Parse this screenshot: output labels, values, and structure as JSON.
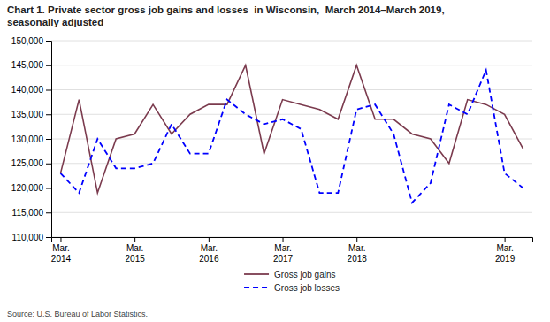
{
  "chart_data": {
    "type": "line",
    "title": "Chart 1. Private sector gross job gains and losses  in Wisconsin,  March 2014–March 2019,\nseasonally adjusted",
    "source": "Source: U.S. Bureau of Labor Statistics.",
    "categories": [
      "Mar.\n2014",
      null,
      null,
      null,
      "Mar.\n2015",
      null,
      null,
      null,
      "Mar.\n2016",
      null,
      null,
      null,
      "Mar.\n2017",
      null,
      null,
      null,
      "Mar.\n2018",
      null,
      null,
      null,
      null,
      null,
      null,
      null,
      "Mar.\n2019",
      null
    ],
    "series": [
      {
        "name": "Gross job gains",
        "color": "#7B3B4E",
        "line_style": "solid",
        "values": [
          123000,
          138000,
          119000,
          130000,
          131000,
          137000,
          131000,
          135000,
          137000,
          137000,
          145000,
          127000,
          138000,
          137000,
          136000,
          134000,
          145000,
          134000,
          134000,
          131000,
          130000,
          125000,
          138000,
          137000,
          135000,
          128000
        ]
      },
      {
        "name": "Gross job losses",
        "color": "#0000FF",
        "line_style": "dashed",
        "values": [
          123000,
          119000,
          130000,
          124000,
          124000,
          125000,
          133000,
          127000,
          127000,
          138000,
          135000,
          133000,
          134000,
          132000,
          119000,
          119000,
          136000,
          137000,
          131000,
          117000,
          121000,
          137000,
          135000,
          144000,
          123000,
          120000
        ]
      }
    ],
    "ylim": [
      110000,
      150000
    ],
    "yticks": [
      {
        "value": 110000,
        "label": "110,000"
      },
      {
        "value": 115000,
        "label": "115,000"
      },
      {
        "value": 120000,
        "label": "120,000"
      },
      {
        "value": 125000,
        "label": "125,000"
      },
      {
        "value": 130000,
        "label": "130,000"
      },
      {
        "value": 135000,
        "label": "135,000"
      },
      {
        "value": 140000,
        "label": "140,000"
      },
      {
        "value": 145000,
        "label": "145,000"
      },
      {
        "value": 150000,
        "label": "150,000"
      }
    ],
    "grid": true,
    "legend": "lower center"
  }
}
